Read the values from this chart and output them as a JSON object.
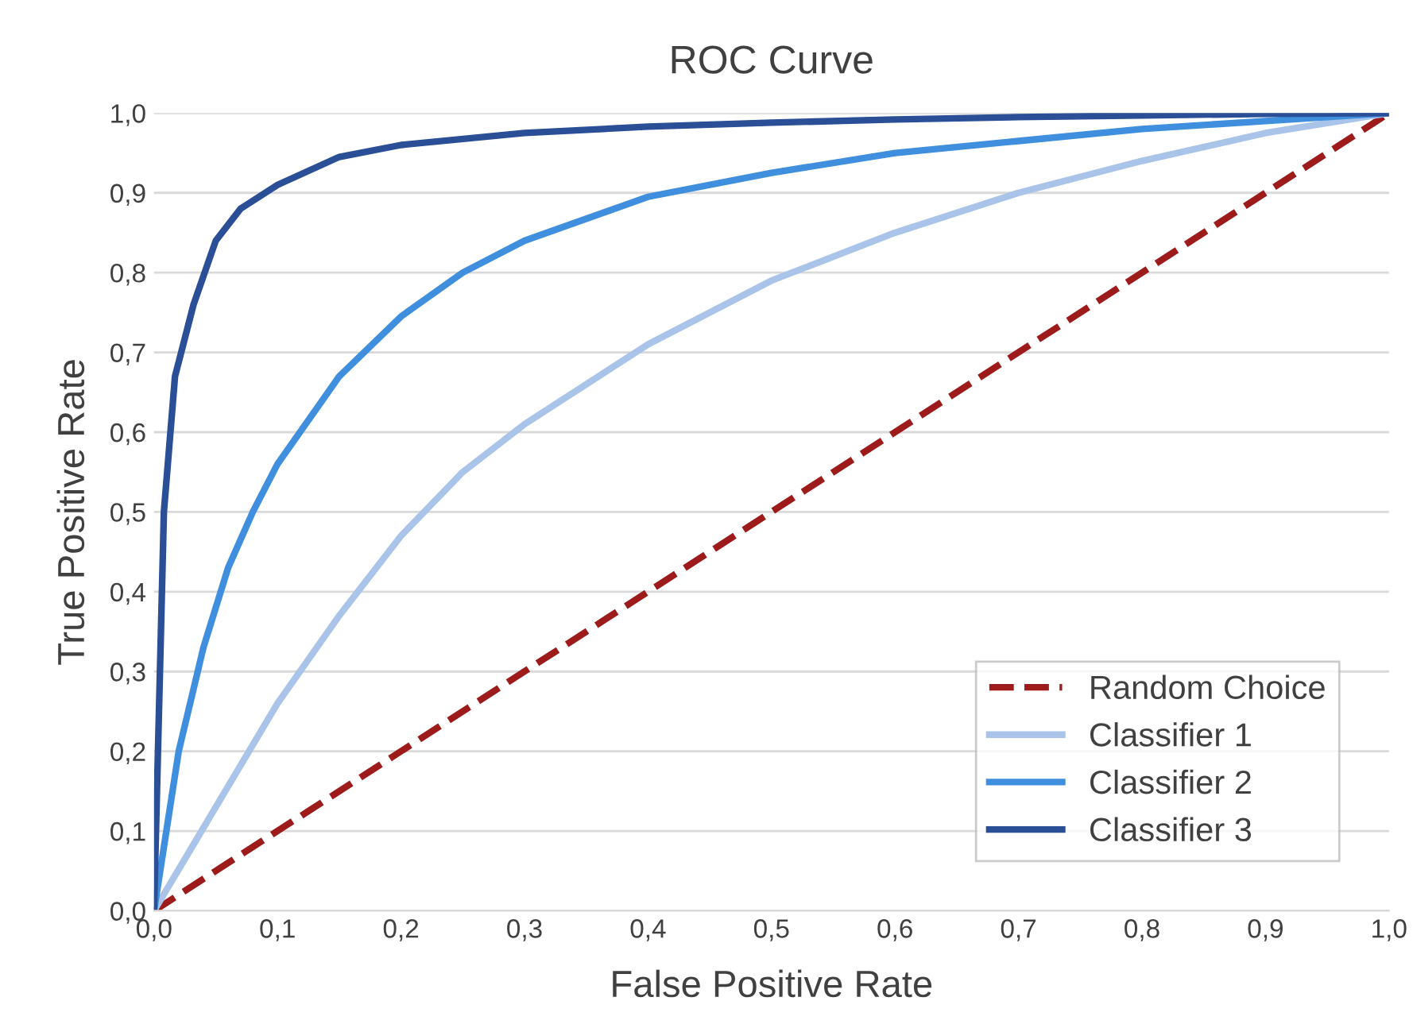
{
  "chart_data": {
    "type": "line",
    "title": "ROC Curve",
    "xlabel": "False Positive Rate",
    "ylabel": "True Positive Rate",
    "xlim": [
      0,
      1
    ],
    "ylim": [
      0,
      1
    ],
    "xticks": [
      {
        "value": 0,
        "label": "0,0"
      },
      {
        "value": 0.1,
        "label": "0,1"
      },
      {
        "value": 0.2,
        "label": "0,2"
      },
      {
        "value": 0.3,
        "label": "0,3"
      },
      {
        "value": 0.4,
        "label": "0,4"
      },
      {
        "value": 0.5,
        "label": "0,5"
      },
      {
        "value": 0.6,
        "label": "0,6"
      },
      {
        "value": 0.7,
        "label": "0,7"
      },
      {
        "value": 0.8,
        "label": "0,8"
      },
      {
        "value": 0.9,
        "label": "0,9"
      },
      {
        "value": 1,
        "label": "1,0"
      }
    ],
    "yticks": [
      {
        "value": 0,
        "label": "0,0"
      },
      {
        "value": 0.1,
        "label": "0,1"
      },
      {
        "value": 0.2,
        "label": "0,2"
      },
      {
        "value": 0.3,
        "label": "0,3"
      },
      {
        "value": 0.4,
        "label": "0,4"
      },
      {
        "value": 0.5,
        "label": "0,5"
      },
      {
        "value": 0.6,
        "label": "0,6"
      },
      {
        "value": 0.7,
        "label": "0,7"
      },
      {
        "value": 0.8,
        "label": "0,8"
      },
      {
        "value": 0.9,
        "label": "0,9"
      },
      {
        "value": 1,
        "label": "1,0"
      }
    ],
    "grid": "y",
    "legend": "bottom right",
    "series": [
      {
        "name": "Random Choice",
        "color": "#9e1b1b",
        "line_style": "dashed",
        "x": [
          0,
          1
        ],
        "values": [
          0,
          1
        ]
      },
      {
        "name": "Classifier 1",
        "color": "#a9c4e8",
        "line_style": "solid",
        "x": [
          0,
          0.05,
          0.1,
          0.15,
          0.2,
          0.25,
          0.3,
          0.4,
          0.5,
          0.6,
          0.7,
          0.8,
          0.9,
          1
        ],
        "values": [
          0,
          0.13,
          0.26,
          0.37,
          0.47,
          0.55,
          0.61,
          0.71,
          0.79,
          0.85,
          0.9,
          0.94,
          0.975,
          1
        ]
      },
      {
        "name": "Classifier 2",
        "color": "#3f8fde",
        "line_style": "solid",
        "x": [
          0,
          0.02,
          0.04,
          0.06,
          0.08,
          0.1,
          0.15,
          0.2,
          0.25,
          0.3,
          0.4,
          0.5,
          0.6,
          0.7,
          0.8,
          0.9,
          1
        ],
        "values": [
          0,
          0.2,
          0.33,
          0.43,
          0.5,
          0.56,
          0.67,
          0.745,
          0.8,
          0.84,
          0.895,
          0.925,
          0.95,
          0.965,
          0.98,
          0.99,
          1
        ]
      },
      {
        "name": "Classifier 3",
        "color": "#2a4f96",
        "line_style": "solid",
        "x": [
          0,
          0.008,
          0.017,
          0.032,
          0.05,
          0.07,
          0.1,
          0.15,
          0.2,
          0.3,
          0.4,
          0.5,
          0.6,
          0.7,
          0.8,
          0.9,
          1
        ],
        "values": [
          0,
          0.5,
          0.67,
          0.76,
          0.84,
          0.88,
          0.91,
          0.945,
          0.96,
          0.975,
          0.983,
          0.988,
          0.992,
          0.995,
          0.997,
          0.999,
          1
        ]
      }
    ]
  }
}
